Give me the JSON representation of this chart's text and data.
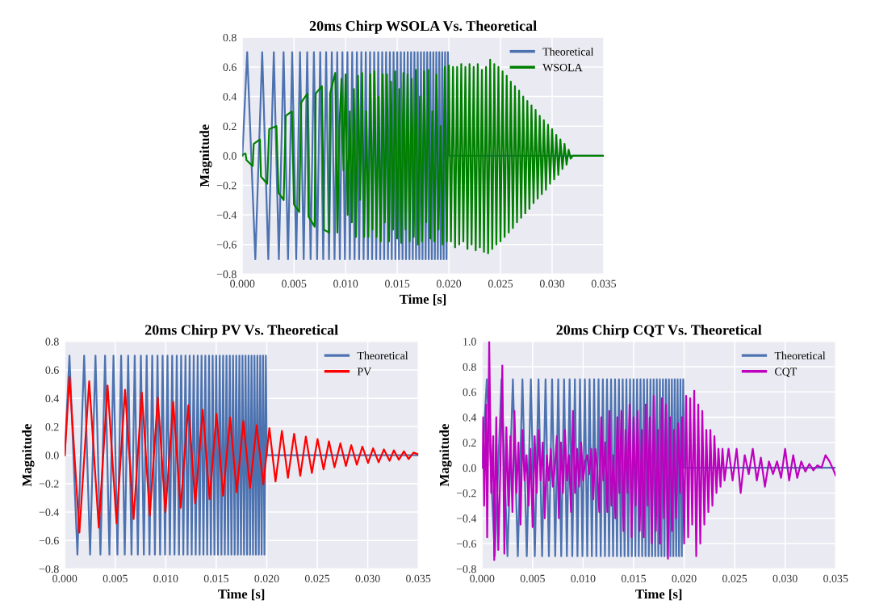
{
  "chart_data": [
    {
      "type": "line",
      "title": "20ms Chirp WSOLA Vs. Theoretical",
      "xlabel": "Time [s]",
      "ylabel": "Magnitude",
      "grid": true,
      "legend": "top right",
      "xlim": [
        0,
        0.035
      ],
      "ylim": [
        -0.8,
        0.8
      ],
      "xticks": [
        {
          "value": 0,
          "label": "0.000"
        },
        {
          "value": 0.005,
          "label": "0.005"
        },
        {
          "value": 0.01,
          "label": "0.010"
        },
        {
          "value": 0.015,
          "label": "0.015"
        },
        {
          "value": 0.02,
          "label": "0.020"
        },
        {
          "value": 0.025,
          "label": "0.025"
        },
        {
          "value": 0.03,
          "label": "0.030"
        },
        {
          "value": 0.035,
          "label": "0.035"
        }
      ],
      "yticks": [
        {
          "value": -0.8,
          "label": "−0.8"
        },
        {
          "value": -0.6,
          "label": "−0.6"
        },
        {
          "value": -0.4,
          "label": "−0.4"
        },
        {
          "value": -0.2,
          "label": "−0.2"
        },
        {
          "value": 0,
          "label": "0.0"
        },
        {
          "value": 0.2,
          "label": "0.2"
        },
        {
          "value": 0.4,
          "label": "0.4"
        },
        {
          "value": 0.6,
          "label": "0.6"
        },
        {
          "value": 0.8,
          "label": "0.8"
        }
      ],
      "series": [
        {
          "name": "Theoretical",
          "color": "#4c72b0",
          "x": [
            0,
            0.000466,
            0.001254,
            0.001921,
            0.00251,
            0.003043,
            0.003534,
            0.003991,
            0.004421,
            0.004827,
            0.005214,
            0.005584,
            0.005939,
            0.00628,
            0.00661,
            0.006929,
            0.007238,
            0.007538,
            0.00783,
            0.008114,
            0.008391,
            0.008662,
            0.008927,
            0.009186,
            0.00944,
            0.009689,
            0.009932,
            0.010172,
            0.010408,
            0.010639,
            0.010866,
            0.01109,
            0.01131,
            0.011527,
            0.011741,
            0.011953,
            0.01216,
            0.012366,
            0.012568,
            0.012768,
            0.012965,
            0.013161,
            0.013353,
            0.013544,
            0.013732,
            0.013918,
            0.014103,
            0.014285,
            0.014466,
            0.014644,
            0.014822,
            0.014996,
            0.01517,
            0.015342,
            0.015512,
            0.015681,
            0.015848,
            0.016014,
            0.016178,
            0.016341,
            0.016503,
            0.016663,
            0.016822,
            0.01698,
            0.017137,
            0.017292,
            0.017446,
            0.017599,
            0.017751,
            0.017902,
            0.018051,
            0.0182,
            0.018348,
            0.018494,
            0.01864,
            0.018785,
            0.018928,
            0.019071,
            0.019213,
            0.019354,
            0.019494,
            0.019634,
            0.019772,
            0.01991,
            0.02,
            0.035
          ],
          "values": [
            0,
            0.7,
            -0.7,
            0.7,
            -0.7,
            0.7,
            -0.7,
            0.7,
            -0.7,
            0.7,
            -0.7,
            0.7,
            -0.7,
            0.7,
            -0.7,
            0.7,
            -0.7,
            0.7,
            -0.7,
            0.7,
            -0.7,
            0.7,
            -0.7,
            0.7,
            -0.7,
            0.7,
            -0.7,
            0.7,
            -0.7,
            0.7,
            -0.7,
            0.7,
            -0.7,
            0.7,
            -0.7,
            0.7,
            -0.7,
            0.7,
            -0.7,
            0.7,
            -0.7,
            0.7,
            -0.7,
            0.7,
            -0.7,
            0.7,
            -0.7,
            0.7,
            -0.7,
            0.7,
            -0.7,
            0.7,
            -0.7,
            0.7,
            -0.7,
            0.7,
            -0.7,
            0.7,
            -0.7,
            0.7,
            -0.7,
            0.7,
            -0.7,
            0.7,
            -0.7,
            0.7,
            -0.7,
            0.7,
            -0.7,
            0.7,
            -0.7,
            0.7,
            -0.7,
            0.7,
            -0.7,
            0.7,
            -0.7,
            0.7,
            -0.7,
            0.7,
            -0.7,
            0.7,
            -0.7,
            0.7,
            0,
            0
          ]
        },
        {
          "name": "WSOLA",
          "color": "#008000",
          "x": [
            0,
            0.0001,
            0.0003,
            0.0004,
            0.001,
            0.0011,
            0.0017,
            0.0018,
            0.0024,
            0.0026,
            0.0033,
            0.0035,
            0.004,
            0.0042,
            0.0048,
            0.005,
            0.0055,
            0.0057,
            0.0063,
            0.0064,
            0.007,
            0.0071,
            0.0077,
            0.0079,
            0.0084,
            0.0085,
            0.009,
            0.0092,
            0.0094,
            0.0096,
            0.0098,
            0.01,
            0.0102,
            0.0104,
            0.0106,
            0.0108,
            0.011,
            0.0112,
            0.0114,
            0.0116,
            0.0118,
            0.012,
            0.0122,
            0.0124,
            0.0126,
            0.0128,
            0.013,
            0.0132,
            0.0134,
            0.0136,
            0.0138,
            0.014,
            0.0142,
            0.0144,
            0.0146,
            0.0148,
            0.015,
            0.0152,
            0.0154,
            0.0156,
            0.0158,
            0.016,
            0.0162,
            0.0164,
            0.0166,
            0.0168,
            0.017,
            0.0172,
            0.0174,
            0.0176,
            0.0178,
            0.018,
            0.0182,
            0.0184,
            0.0186,
            0.0188,
            0.019,
            0.0192,
            0.0194,
            0.0196,
            0.0198,
            0.02,
            0.0202,
            0.0204,
            0.0206,
            0.0208,
            0.021,
            0.0212,
            0.0214,
            0.0216,
            0.0218,
            0.022,
            0.0222,
            0.0224,
            0.0226,
            0.0228,
            0.023,
            0.0232,
            0.0234,
            0.0236,
            0.0238,
            0.024,
            0.0242,
            0.0244,
            0.0246,
            0.0248,
            0.025,
            0.0252,
            0.0254,
            0.0256,
            0.0258,
            0.026,
            0.0262,
            0.0264,
            0.0266,
            0.0268,
            0.027,
            0.0272,
            0.0274,
            0.0276,
            0.0278,
            0.028,
            0.0282,
            0.0284,
            0.0286,
            0.0288,
            0.029,
            0.0292,
            0.0294,
            0.0296,
            0.0298,
            0.03,
            0.0302,
            0.0304,
            0.0306,
            0.0308,
            0.031,
            0.0312,
            0.0314,
            0.0316,
            0.0318,
            0.032,
            0.035
          ],
          "values": [
            0,
            0.01,
            0.015,
            -0.03,
            -0.07,
            0.08,
            0.11,
            -0.14,
            -0.19,
            0.18,
            0.2,
            -0.25,
            -0.3,
            0.27,
            0.3,
            -0.33,
            -0.38,
            0.36,
            0.42,
            -0.41,
            -0.48,
            0.42,
            0.47,
            -0.5,
            -0.52,
            0.42,
            0.56,
            -0.52,
            0.2,
            0.52,
            -0.1,
            0.55,
            -0.4,
            0.3,
            -0.45,
            0.45,
            -0.55,
            0.54,
            -0.3,
            0.56,
            -0.55,
            0.3,
            -0.55,
            0.55,
            -0.5,
            0.57,
            -0.55,
            0.4,
            -0.58,
            0.55,
            -0.45,
            0.55,
            -0.58,
            0.5,
            -0.5,
            0.57,
            -0.56,
            0.45,
            -0.59,
            0.56,
            -0.5,
            0.55,
            -0.58,
            0.52,
            -0.55,
            0.58,
            -0.6,
            0.4,
            -0.58,
            0.57,
            -0.45,
            0.58,
            -0.56,
            0.3,
            -0.58,
            0.55,
            -0.5,
            0.2,
            -0.6,
            0.6,
            -0.58,
            0.61,
            -0.58,
            0.6,
            -0.62,
            0.6,
            -0.6,
            0.62,
            -0.58,
            0.6,
            -0.63,
            0.62,
            -0.6,
            0.6,
            -0.64,
            0.62,
            -0.62,
            0.58,
            -0.65,
            0.6,
            -0.66,
            0.65,
            -0.63,
            0.62,
            -0.6,
            0.6,
            -0.58,
            0.57,
            -0.55,
            0.54,
            -0.52,
            0.5,
            -0.49,
            0.47,
            -0.45,
            0.44,
            -0.42,
            0.4,
            -0.39,
            0.37,
            -0.36,
            0.34,
            -0.32,
            0.31,
            -0.29,
            0.27,
            -0.26,
            0.24,
            -0.23,
            0.21,
            -0.19,
            0.18,
            -0.16,
            0.14,
            -0.13,
            0.11,
            -0.09,
            0.08,
            -0.06,
            0.04,
            -0.02,
            0,
            0
          ]
        }
      ]
    },
    {
      "type": "line",
      "title": "20ms Chirp PV Vs. Theoretical",
      "xlabel": "Time [s]",
      "ylabel": "Magnitude",
      "grid": true,
      "legend": "top right",
      "xlim": [
        0,
        0.035
      ],
      "ylim": [
        -0.8,
        0.8
      ],
      "xticks": [
        {
          "value": 0,
          "label": "0.000"
        },
        {
          "value": 0.005,
          "label": "0.005"
        },
        {
          "value": 0.01,
          "label": "0.010"
        },
        {
          "value": 0.015,
          "label": "0.015"
        },
        {
          "value": 0.02,
          "label": "0.020"
        },
        {
          "value": 0.025,
          "label": "0.025"
        },
        {
          "value": 0.03,
          "label": "0.030"
        },
        {
          "value": 0.035,
          "label": "0.035"
        }
      ],
      "yticks": [
        {
          "value": -0.8,
          "label": "−0.8"
        },
        {
          "value": -0.6,
          "label": "−0.6"
        },
        {
          "value": -0.4,
          "label": "−0.4"
        },
        {
          "value": -0.2,
          "label": "−0.2"
        },
        {
          "value": 0,
          "label": "0.0"
        },
        {
          "value": 0.2,
          "label": "0.2"
        },
        {
          "value": 0.4,
          "label": "0.4"
        },
        {
          "value": 0.6,
          "label": "0.6"
        },
        {
          "value": 0.8,
          "label": "0.8"
        }
      ],
      "series": [
        {
          "name": "Theoretical",
          "color": "#4c72b0",
          "x": [
            0,
            0.000466,
            0.001254,
            0.001921,
            0.00251,
            0.003043,
            0.003534,
            0.003991,
            0.004421,
            0.004827,
            0.005214,
            0.005584,
            0.005939,
            0.00628,
            0.00661,
            0.006929,
            0.007238,
            0.007538,
            0.00783,
            0.008114,
            0.008391,
            0.008662,
            0.008927,
            0.009186,
            0.00944,
            0.009689,
            0.009932,
            0.010172,
            0.010408,
            0.010639,
            0.010866,
            0.01109,
            0.01131,
            0.011527,
            0.011741,
            0.011953,
            0.01216,
            0.012366,
            0.012568,
            0.012768,
            0.012965,
            0.013161,
            0.013353,
            0.013544,
            0.013732,
            0.013918,
            0.014103,
            0.014285,
            0.014466,
            0.014644,
            0.014822,
            0.014996,
            0.01517,
            0.015342,
            0.015512,
            0.015681,
            0.015848,
            0.016014,
            0.016178,
            0.016341,
            0.016503,
            0.016663,
            0.016822,
            0.01698,
            0.017137,
            0.017292,
            0.017446,
            0.017599,
            0.017751,
            0.017902,
            0.018051,
            0.0182,
            0.018348,
            0.018494,
            0.01864,
            0.018785,
            0.018928,
            0.019071,
            0.019213,
            0.019354,
            0.019494,
            0.019634,
            0.019772,
            0.01991,
            0.02,
            0.035
          ],
          "values": [
            0,
            0.7,
            -0.7,
            0.7,
            -0.7,
            0.7,
            -0.7,
            0.7,
            -0.7,
            0.7,
            -0.7,
            0.7,
            -0.7,
            0.7,
            -0.7,
            0.7,
            -0.7,
            0.7,
            -0.7,
            0.7,
            -0.7,
            0.7,
            -0.7,
            0.7,
            -0.7,
            0.7,
            -0.7,
            0.7,
            -0.7,
            0.7,
            -0.7,
            0.7,
            -0.7,
            0.7,
            -0.7,
            0.7,
            -0.7,
            0.7,
            -0.7,
            0.7,
            -0.7,
            0.7,
            -0.7,
            0.7,
            -0.7,
            0.7,
            -0.7,
            0.7,
            -0.7,
            0.7,
            -0.7,
            0.7,
            -0.7,
            0.7,
            -0.7,
            0.7,
            -0.7,
            0.7,
            -0.7,
            0.7,
            -0.7,
            0.7,
            -0.7,
            0.7,
            -0.7,
            0.7,
            -0.7,
            0.7,
            -0.7,
            0.7,
            -0.7,
            0.7,
            -0.7,
            0.7,
            -0.7,
            0.7,
            -0.7,
            0.7,
            -0.7,
            0.7,
            -0.7,
            0.7,
            -0.7,
            0.7,
            0,
            0
          ]
        },
        {
          "name": "PV",
          "color": "#ff0000",
          "x": [
            0,
            0.00047,
            0.00145,
            0.00242,
            0.00337,
            0.00424,
            0.00513,
            0.00597,
            0.00682,
            0.00763,
            0.00842,
            0.00921,
            0.00997,
            0.01074,
            0.01147,
            0.01224,
            0.01292,
            0.01366,
            0.01434,
            0.01503,
            0.01568,
            0.01637,
            0.01703,
            0.01768,
            0.01834,
            0.019,
            0.01966,
            0.02026,
            0.02087,
            0.0215,
            0.0221,
            0.02271,
            0.02332,
            0.02387,
            0.02447,
            0.02503,
            0.02563,
            0.02616,
            0.02671,
            0.02729,
            0.02784,
            0.02837,
            0.02892,
            0.02947,
            0.03003,
            0.03053,
            0.03108,
            0.0316,
            0.03216,
            0.03258,
            0.03308,
            0.03358,
            0.03405,
            0.03453,
            0.035
          ],
          "values": [
            0,
            0.55,
            -0.545,
            0.52,
            -0.51,
            0.49,
            -0.48,
            0.46,
            -0.45,
            0.44,
            -0.425,
            0.405,
            -0.4,
            0.375,
            -0.37,
            0.35,
            -0.34,
            0.32,
            -0.31,
            0.29,
            -0.285,
            0.265,
            -0.26,
            0.24,
            -0.23,
            0.21,
            -0.205,
            0.19,
            -0.185,
            0.17,
            -0.16,
            0.15,
            -0.145,
            0.13,
            -0.125,
            0.113,
            -0.1,
            0.097,
            -0.085,
            0.083,
            -0.076,
            0.07,
            -0.067,
            0.06,
            -0.055,
            0.048,
            -0.05,
            0.04,
            -0.04,
            0.034,
            -0.032,
            0.027,
            -0.027,
            0.018,
            0.005
          ]
        }
      ]
    },
    {
      "type": "line",
      "title": "20ms Chirp CQT Vs. Theoretical",
      "xlabel": "Time [s]",
      "ylabel": "Magnitude",
      "grid": true,
      "legend": "top right",
      "xlim": [
        0,
        0.035
      ],
      "ylim": [
        -0.8,
        1.0
      ],
      "xticks": [
        {
          "value": 0,
          "label": "0.000"
        },
        {
          "value": 0.005,
          "label": "0.005"
        },
        {
          "value": 0.01,
          "label": "0.010"
        },
        {
          "value": 0.015,
          "label": "0.015"
        },
        {
          "value": 0.02,
          "label": "0.020"
        },
        {
          "value": 0.025,
          "label": "0.025"
        },
        {
          "value": 0.03,
          "label": "0.030"
        },
        {
          "value": 0.035,
          "label": "0.035"
        }
      ],
      "yticks": [
        {
          "value": -0.8,
          "label": "−0.8"
        },
        {
          "value": -0.6,
          "label": "−0.6"
        },
        {
          "value": -0.4,
          "label": "−0.4"
        },
        {
          "value": -0.2,
          "label": "−0.2"
        },
        {
          "value": 0,
          "label": "0.0"
        },
        {
          "value": 0.2,
          "label": "0.2"
        },
        {
          "value": 0.4,
          "label": "0.4"
        },
        {
          "value": 0.6,
          "label": "0.6"
        },
        {
          "value": 0.8,
          "label": "0.8"
        },
        {
          "value": 1.0,
          "label": "1.0"
        }
      ],
      "series": [
        {
          "name": "Theoretical",
          "color": "#4c72b0",
          "x": [
            0,
            0.000466,
            0.001254,
            0.001921,
            0.00251,
            0.003043,
            0.003534,
            0.003991,
            0.004421,
            0.004827,
            0.005214,
            0.005584,
            0.005939,
            0.00628,
            0.00661,
            0.006929,
            0.007238,
            0.007538,
            0.00783,
            0.008114,
            0.008391,
            0.008662,
            0.008927,
            0.009186,
            0.00944,
            0.009689,
            0.009932,
            0.010172,
            0.010408,
            0.010639,
            0.010866,
            0.01109,
            0.01131,
            0.011527,
            0.011741,
            0.011953,
            0.01216,
            0.012366,
            0.012568,
            0.012768,
            0.012965,
            0.013161,
            0.013353,
            0.013544,
            0.013732,
            0.013918,
            0.014103,
            0.014285,
            0.014466,
            0.014644,
            0.014822,
            0.014996,
            0.01517,
            0.015342,
            0.015512,
            0.015681,
            0.015848,
            0.016014,
            0.016178,
            0.016341,
            0.016503,
            0.016663,
            0.016822,
            0.01698,
            0.017137,
            0.017292,
            0.017446,
            0.017599,
            0.017751,
            0.017902,
            0.018051,
            0.0182,
            0.018348,
            0.018494,
            0.01864,
            0.018785,
            0.018928,
            0.019071,
            0.019213,
            0.019354,
            0.019494,
            0.019634,
            0.019772,
            0.01991,
            0.02,
            0.035
          ],
          "values": [
            0,
            0.7,
            -0.7,
            0.7,
            -0.7,
            0.7,
            -0.7,
            0.7,
            -0.7,
            0.7,
            -0.7,
            0.7,
            -0.7,
            0.7,
            -0.7,
            0.7,
            -0.7,
            0.7,
            -0.7,
            0.7,
            -0.7,
            0.7,
            -0.7,
            0.7,
            -0.7,
            0.7,
            -0.7,
            0.7,
            -0.7,
            0.7,
            -0.7,
            0.7,
            -0.7,
            0.7,
            -0.7,
            0.7,
            -0.7,
            0.7,
            -0.7,
            0.7,
            -0.7,
            0.7,
            -0.7,
            0.7,
            -0.7,
            0.7,
            -0.7,
            0.7,
            -0.7,
            0.7,
            -0.7,
            0.7,
            -0.7,
            0.7,
            -0.7,
            0.7,
            -0.7,
            0.7,
            -0.7,
            0.7,
            -0.7,
            0.7,
            -0.7,
            0.7,
            -0.7,
            0.7,
            -0.7,
            0.7,
            -0.7,
            0.7,
            -0.7,
            0.7,
            -0.7,
            0.7,
            -0.7,
            0.7,
            -0.7,
            0.7,
            -0.7,
            0.7,
            -0.7,
            0.7,
            -0.7,
            0.7,
            0,
            0
          ]
        },
        {
          "name": "CQT",
          "color": "#bf00bf",
          "x": [
            0,
            0.0001,
            0.0002,
            0.0004,
            0.0005,
            0.0007,
            0.0009,
            0.0011,
            0.0012,
            0.0014,
            0.0016,
            0.0018,
            0.002,
            0.0022,
            0.0024,
            0.0026,
            0.0028,
            0.003,
            0.0032,
            0.0034,
            0.0036,
            0.0038,
            0.004,
            0.0042,
            0.0044,
            0.0046,
            0.0048,
            0.005,
            0.0052,
            0.0054,
            0.0056,
            0.0058,
            0.006,
            0.0062,
            0.0064,
            0.0066,
            0.0068,
            0.007,
            0.0072,
            0.0074,
            0.0076,
            0.0078,
            0.008,
            0.0082,
            0.0084,
            0.0086,
            0.0088,
            0.009,
            0.0092,
            0.0094,
            0.0096,
            0.0098,
            0.01,
            0.0102,
            0.0104,
            0.0106,
            0.0108,
            0.011,
            0.0112,
            0.0114,
            0.0116,
            0.0118,
            0.012,
            0.0122,
            0.0124,
            0.0126,
            0.0128,
            0.013,
            0.0132,
            0.0134,
            0.0136,
            0.0138,
            0.014,
            0.0142,
            0.0144,
            0.0146,
            0.0148,
            0.015,
            0.0152,
            0.0154,
            0.0156,
            0.0158,
            0.016,
            0.0162,
            0.0164,
            0.0166,
            0.0168,
            0.017,
            0.0172,
            0.0174,
            0.0176,
            0.0178,
            0.018,
            0.0182,
            0.0184,
            0.0186,
            0.0188,
            0.019,
            0.0192,
            0.0194,
            0.0196,
            0.0198,
            0.02,
            0.0202,
            0.0204,
            0.0206,
            0.0208,
            0.021,
            0.0212,
            0.0214,
            0.0216,
            0.0218,
            0.022,
            0.0222,
            0.0224,
            0.0226,
            0.0228,
            0.023,
            0.0232,
            0.0234,
            0.0236,
            0.0238,
            0.024,
            0.0244,
            0.0248,
            0.0252,
            0.0256,
            0.026,
            0.0264,
            0.0268,
            0.0272,
            0.0276,
            0.028,
            0.0284,
            0.0288,
            0.0292,
            0.0296,
            0.03,
            0.0304,
            0.0308,
            0.0312,
            0.0316,
            0.032,
            0.0324,
            0.0328,
            0.0332,
            0.0336,
            0.034,
            0.0344,
            0.0348,
            0.035
          ],
          "values": [
            0,
            0.4,
            -0.3,
            0.5,
            -0.55,
            1.0,
            -0.2,
            0.25,
            -0.73,
            0.4,
            -0.65,
            -0.03,
            0.81,
            -0.68,
            0.32,
            -0.3,
            0.25,
            -0.35,
            0.45,
            -0.2,
            0.2,
            -0.45,
            0.3,
            -0.1,
            0.1,
            -0.3,
            0.15,
            -0.47,
            0.25,
            -0.2,
            0.3,
            -0.1,
            0.2,
            -0.4,
            0.1,
            -0.1,
            0.15,
            -0.15,
            0,
            0.25,
            -0.4,
            0.2,
            -0.2,
            0.3,
            -0.1,
            0.1,
            -0.35,
            0.45,
            -0.2,
            0.15,
            -0.15,
            0.2,
            -0.1,
            0.05,
            0.1,
            -0.05,
            0.15,
            -0.25,
            0.15,
            0,
            -0.35,
            0.4,
            -0.1,
            0.2,
            -0.35,
            0.45,
            -0.3,
            0.1,
            -0.4,
            0.4,
            -0.2,
            0.45,
            -0.5,
            0.3,
            -0.2,
            0.5,
            -0.55,
            0.4,
            -0.3,
            0.45,
            -0.5,
            0.3,
            -0.55,
            0.5,
            -0.3,
            0.4,
            -0.6,
            0.57,
            -0.5,
            0.3,
            -0.6,
            0.55,
            -0.4,
            0.5,
            -0.72,
            0.4,
            -0.5,
            0.3,
            -0.4,
            0.35,
            -0.2,
            0.4,
            -0.6,
            0.57,
            -0.55,
            0.55,
            -0.45,
            0.61,
            -0.7,
            0.5,
            -0.6,
            0.45,
            -0.45,
            0.3,
            -0.35,
            0.3,
            -0.3,
            0.25,
            -0.2,
            0.15,
            -0.15,
            0.15,
            -0.1,
            0.15,
            -0.1,
            0.15,
            -0.2,
            0.1,
            -0.05,
            0.15,
            -0.1,
            0.08,
            -0.15,
            0.05,
            -0.05,
            0.05,
            -0.08,
            0.15,
            -0.1,
            0.1,
            -0.08,
            0.05,
            -0.03,
            0.03,
            -0.02,
            0.02,
            0,
            0.1,
            0.05,
            -0.02,
            -0.06
          ]
        }
      ]
    }
  ]
}
